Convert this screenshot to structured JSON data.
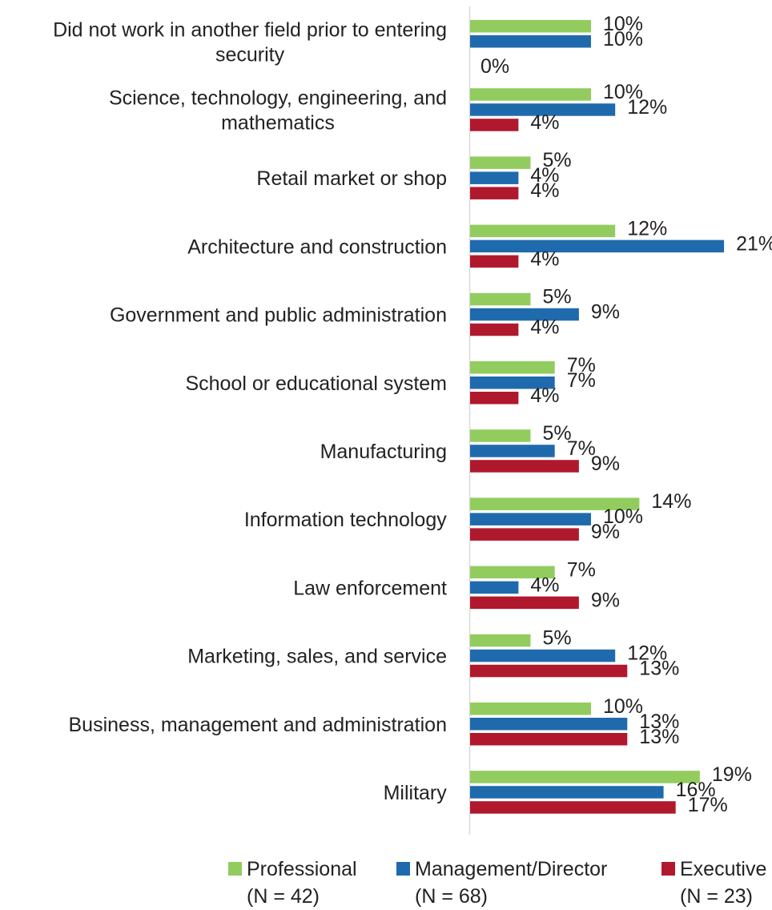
{
  "chart_data": {
    "type": "bar",
    "orientation": "horizontal",
    "title": "",
    "xlabel": "",
    "ylabel": "",
    "xlim": [
      0,
      21
    ],
    "categories": [
      "Did not work in another field prior to entering security",
      "Science, technology, engineering, and mathematics",
      "Retail market or shop",
      "Architecture and construction",
      "Government and public administration",
      "School or educational system",
      "Manufacturing",
      "Information technology",
      "Law enforcement",
      "Marketing, sales, and service",
      "Business, management and administration",
      "Military"
    ],
    "category_lines": [
      [
        "Did not work in another field prior to entering",
        "security"
      ],
      [
        "Science, technology, engineering, and",
        "mathematics"
      ],
      [
        "Retail market or shop"
      ],
      [
        "Architecture and construction"
      ],
      [
        "Government and public administration"
      ],
      [
        "School or educational system"
      ],
      [
        "Manufacturing"
      ],
      [
        "Information technology"
      ],
      [
        "Law enforcement"
      ],
      [
        "Marketing, sales, and service"
      ],
      [
        "Business, management and administration"
      ],
      [
        "Military"
      ]
    ],
    "series": [
      {
        "name": "Professional",
        "n_label": "(N = 42)",
        "color": "#92cc5f",
        "values": [
          10,
          10,
          5,
          12,
          5,
          7,
          5,
          14,
          7,
          5,
          10,
          19
        ]
      },
      {
        "name": "Management/Director",
        "n_label": "(N = 68)",
        "color": "#1f6aad",
        "values": [
          10,
          12,
          4,
          21,
          9,
          7,
          7,
          10,
          4,
          12,
          13,
          16
        ]
      },
      {
        "name": "Executive",
        "n_label": "(N = 23)",
        "color": "#b0192d",
        "values": [
          0,
          4,
          4,
          4,
          4,
          4,
          9,
          9,
          9,
          13,
          13,
          17
        ]
      }
    ],
    "value_suffix": "%",
    "grid": false,
    "legend_position": "bottom"
  }
}
